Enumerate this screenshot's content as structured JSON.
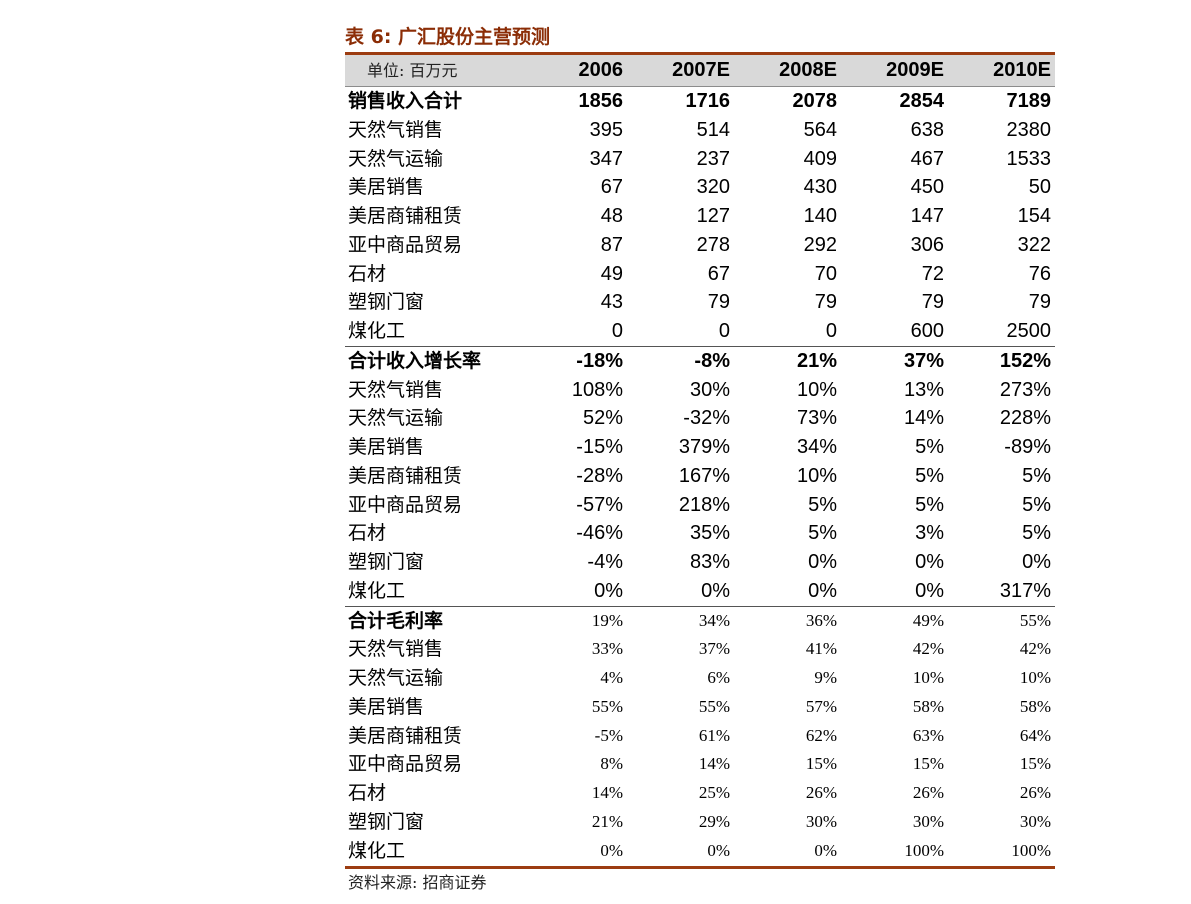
{
  "title": "表 6:  广汇股份主营预测",
  "unit_label": "单位:  百万元",
  "years": [
    "2006",
    "2007E",
    "2008E",
    "2009E",
    "2010E"
  ],
  "sections": [
    {
      "style": "s1",
      "rows": [
        {
          "label": "销售收入合计",
          "total": true,
          "values": [
            "1856",
            "1716",
            "2078",
            "2854",
            "7189"
          ]
        },
        {
          "label": "天然气销售",
          "values": [
            "395",
            "514",
            "564",
            "638",
            "2380"
          ]
        },
        {
          "label": "天然气运输",
          "values": [
            "347",
            "237",
            "409",
            "467",
            "1533"
          ]
        },
        {
          "label": "美居销售",
          "values": [
            "67",
            "320",
            "430",
            "450",
            "50"
          ]
        },
        {
          "label": "美居商铺租赁",
          "values": [
            "48",
            "127",
            "140",
            "147",
            "154"
          ]
        },
        {
          "label": "亚中商品贸易",
          "values": [
            "87",
            "278",
            "292",
            "306",
            "322"
          ]
        },
        {
          "label": "石材",
          "values": [
            "49",
            "67",
            "70",
            "72",
            "76"
          ]
        },
        {
          "label": "塑钢门窗",
          "values": [
            "43",
            "79",
            "79",
            "79",
            "79"
          ]
        },
        {
          "label": "煤化工",
          "values": [
            "0",
            "0",
            "0",
            "600",
            "2500"
          ]
        }
      ]
    },
    {
      "style": "s2",
      "rows": [
        {
          "label": "合计收入增长率",
          "total": true,
          "values": [
            "-18%",
            "-8%",
            "21%",
            "37%",
            "152%"
          ]
        },
        {
          "label": "天然气销售",
          "values": [
            "108%",
            "30%",
            "10%",
            "13%",
            "273%"
          ]
        },
        {
          "label": "天然气运输",
          "values": [
            "52%",
            "-32%",
            "73%",
            "14%",
            "228%"
          ]
        },
        {
          "label": "美居销售",
          "values": [
            "-15%",
            "379%",
            "34%",
            "5%",
            "-89%"
          ]
        },
        {
          "label": "美居商铺租赁",
          "values": [
            "-28%",
            "167%",
            "10%",
            "5%",
            "5%"
          ]
        },
        {
          "label": "亚中商品贸易",
          "values": [
            "-57%",
            "218%",
            "5%",
            "5%",
            "5%"
          ]
        },
        {
          "label": "石材",
          "values": [
            "-46%",
            "35%",
            "5%",
            "3%",
            "5%"
          ]
        },
        {
          "label": "塑钢门窗",
          "values": [
            "-4%",
            "83%",
            "0%",
            "0%",
            "0%"
          ]
        },
        {
          "label": "煤化工",
          "values": [
            "0%",
            "0%",
            "0%",
            "0%",
            "317%"
          ]
        }
      ]
    },
    {
      "style": "s3",
      "rows": [
        {
          "label": "合计毛利率",
          "total": true,
          "values": [
            "19%",
            "34%",
            "36%",
            "49%",
            "55%"
          ]
        },
        {
          "label": "天然气销售",
          "values": [
            "33%",
            "37%",
            "41%",
            "42%",
            "42%"
          ]
        },
        {
          "label": "天然气运输",
          "values": [
            "4%",
            "6%",
            "9%",
            "10%",
            "10%"
          ]
        },
        {
          "label": "美居销售",
          "values": [
            "55%",
            "55%",
            "57%",
            "58%",
            "58%"
          ]
        },
        {
          "label": "美居商铺租赁",
          "values": [
            "-5%",
            "61%",
            "62%",
            "63%",
            "64%"
          ]
        },
        {
          "label": "亚中商品贸易",
          "values": [
            "8%",
            "14%",
            "15%",
            "15%",
            "15%"
          ]
        },
        {
          "label": "石材",
          "values": [
            "14%",
            "25%",
            "26%",
            "26%",
            "26%"
          ]
        },
        {
          "label": "塑钢门窗",
          "values": [
            "21%",
            "29%",
            "30%",
            "30%",
            "30%"
          ]
        },
        {
          "label": "煤化工",
          "values": [
            "0%",
            "0%",
            "0%",
            "100%",
            "100%"
          ]
        }
      ]
    }
  ],
  "source": "资料来源:  招商证券"
}
